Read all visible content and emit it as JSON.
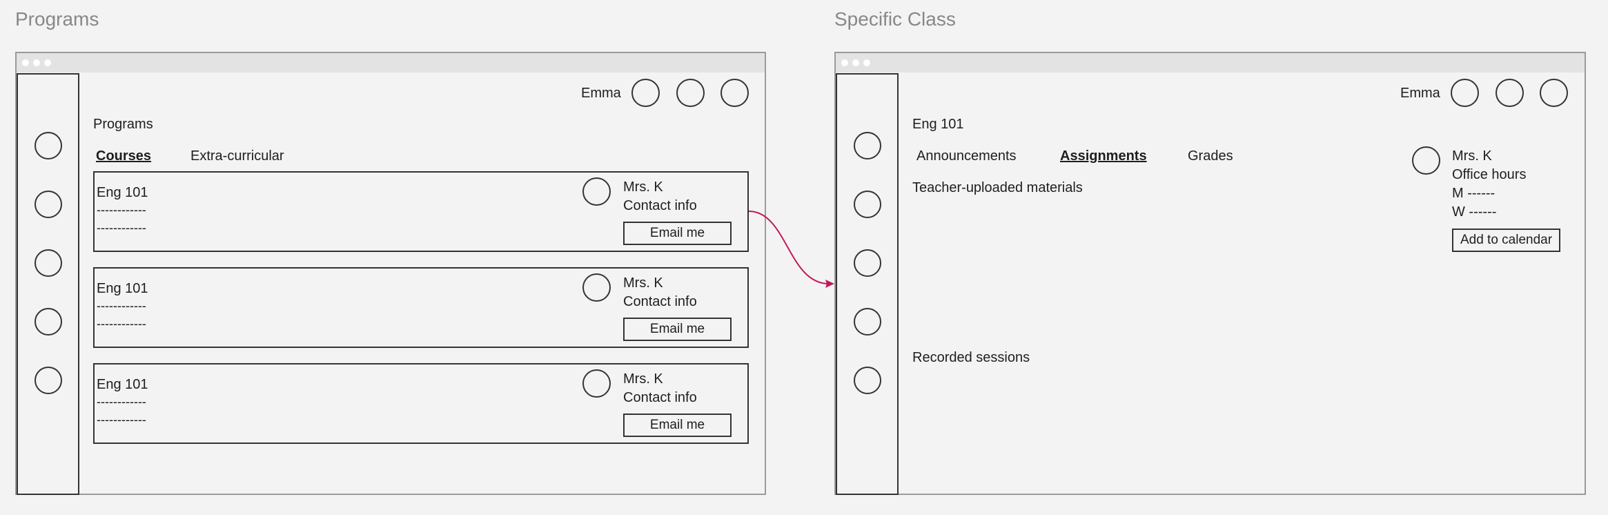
{
  "left_panel": {
    "section_title": "Programs",
    "user_name": "Emma",
    "page_title": "Programs",
    "tabs": [
      {
        "label": "Courses",
        "active": true
      },
      {
        "label": "Extra-curricular",
        "active": false
      }
    ],
    "cards": [
      {
        "course": "Eng 101",
        "line1": "------------",
        "line2": "------------",
        "teacher": "Mrs. K",
        "contact": "Contact info",
        "button": "Email me"
      },
      {
        "course": "Eng 101",
        "line1": "------------",
        "line2": "------------",
        "teacher": "Mrs. K",
        "contact": "Contact info",
        "button": "Email me"
      },
      {
        "course": "Eng 101",
        "line1": "------------",
        "line2": "------------",
        "teacher": "Mrs. K",
        "contact": "Contact info",
        "button": "Email me"
      }
    ]
  },
  "right_panel": {
    "section_title": "Specific Class",
    "user_name": "Emma",
    "page_title": "Eng 101",
    "tabs": [
      {
        "label": "Announcements",
        "active": false
      },
      {
        "label": "Assignments",
        "active": true
      },
      {
        "label": "Grades",
        "active": false
      }
    ],
    "materials_label": "Teacher-uploaded materials",
    "recorded_label": "Recorded sessions",
    "teacher": {
      "name": "Mrs. K",
      "office_hours_label": "Office hours",
      "monday": "M ------",
      "wednesday": "W ------",
      "button": "Add to calendar"
    }
  },
  "colors": {
    "connector": "#c2185b",
    "outline": "#333333",
    "title_gray": "#888888"
  }
}
